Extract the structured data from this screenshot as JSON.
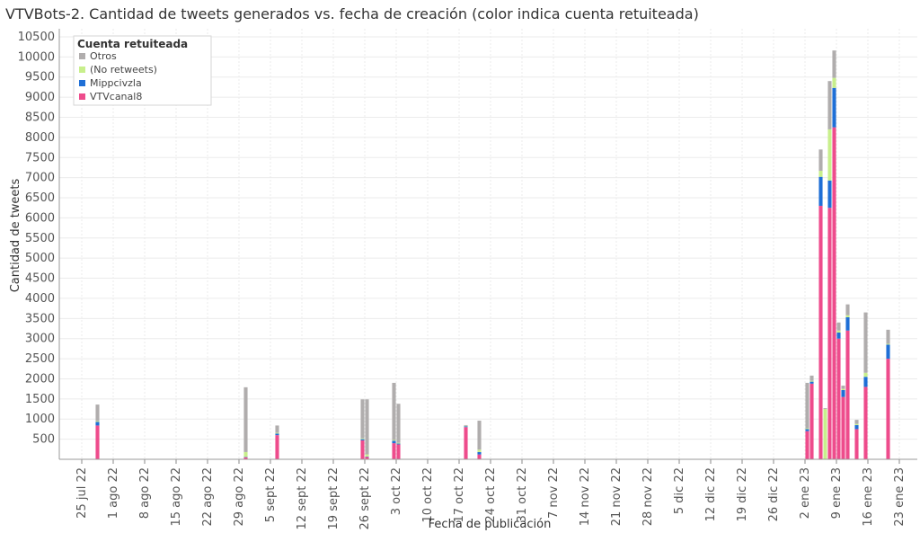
{
  "chart_data": {
    "type": "bar",
    "title": "VTVBots-2. Cantidad de tweets generados vs. fecha de creación (color indica cuenta retuiteada)",
    "xlabel": "Fecha de publicación",
    "ylabel": "Cantidad de tweets",
    "ylim": [
      0,
      10700
    ],
    "yticks": [
      500,
      1000,
      1500,
      2000,
      2500,
      3000,
      3500,
      4000,
      4500,
      5000,
      5500,
      6000,
      6500,
      7000,
      7500,
      8000,
      8500,
      9000,
      9500,
      10000,
      10500
    ],
    "x_start": "2022-07-20",
    "x_end": "2023-01-27",
    "xtick_dates": [
      "2022-07-25",
      "2022-08-01",
      "2022-08-08",
      "2022-08-15",
      "2022-08-22",
      "2022-08-29",
      "2022-09-05",
      "2022-09-12",
      "2022-09-19",
      "2022-09-26",
      "2022-10-03",
      "2022-10-10",
      "2022-10-17",
      "2022-10-24",
      "2022-10-31",
      "2022-11-07",
      "2022-11-14",
      "2022-11-21",
      "2022-11-28",
      "2022-12-05",
      "2022-12-12",
      "2022-12-19",
      "2022-12-26",
      "2023-01-02",
      "2023-01-09",
      "2023-01-16",
      "2023-01-23"
    ],
    "xtick_labels": [
      "25 jul 22",
      "1 ago 22",
      "8 ago 22",
      "15 ago 22",
      "22 ago 22",
      "29 ago 22",
      "5 sept 22",
      "12 sept 22",
      "19 sept 22",
      "26 sept 22",
      "3 oct 22",
      "10 oct 22",
      "17 oct 22",
      "24 oct 22",
      "31 oct 22",
      "7 nov 22",
      "14 nov 22",
      "21 nov 22",
      "28 nov 22",
      "5 dic 22",
      "12 dic 22",
      "19 dic 22",
      "26 dic 22",
      "2 ene 23",
      "9 ene 23",
      "16 ene 23",
      "23 ene 23"
    ],
    "grid": true,
    "legend": {
      "title": "Cuenta retuiteada",
      "placement": "top-left",
      "entries": [
        {
          "name": "Otros",
          "color": "#b0adad"
        },
        {
          "name": "(No retweets)",
          "color": "#c8ef8c"
        },
        {
          "name": "Mippcivzla",
          "color": "#1f6fd6"
        },
        {
          "name": "VTVcanal8",
          "color": "#ee4c8c"
        }
      ]
    },
    "stack_order": [
      "VTVcanal8",
      "Mippcivzla",
      "(No retweets)",
      "Otros"
    ],
    "data": [
      {
        "date": "2022-07-28",
        "VTVcanal8": 840,
        "Mippcivzla": 90,
        "(No retweets)": 20,
        "Otros": 410
      },
      {
        "date": "2022-08-30",
        "VTVcanal8": 50,
        "Mippcivzla": 10,
        "(No retweets)": 120,
        "Otros": 1610
      },
      {
        "date": "2022-09-06",
        "VTVcanal8": 600,
        "Mippcivzla": 40,
        "(No retweets)": 20,
        "Otros": 180
      },
      {
        "date": "2022-09-25",
        "VTVcanal8": 470,
        "Mippcivzla": 30,
        "(No retweets)": 20,
        "Otros": 970
      },
      {
        "date": "2022-09-26",
        "VTVcanal8": 60,
        "Mippcivzla": 10,
        "(No retweets)": 50,
        "Otros": 1370
      },
      {
        "date": "2022-10-02",
        "VTVcanal8": 400,
        "Mippcivzla": 60,
        "(No retweets)": 20,
        "Otros": 1420
      },
      {
        "date": "2022-10-03",
        "VTVcanal8": 370,
        "Mippcivzla": 20,
        "(No retweets)": 20,
        "Otros": 970
      },
      {
        "date": "2022-10-18",
        "VTVcanal8": 800,
        "Mippcivzla": 20,
        "(No retweets)": 10,
        "Otros": 20
      },
      {
        "date": "2022-10-21",
        "VTVcanal8": 120,
        "Mippcivzla": 60,
        "(No retweets)": 60,
        "Otros": 720
      },
      {
        "date": "2023-01-02",
        "VTVcanal8": 700,
        "Mippcivzla": 50,
        "(No retweets)": 20,
        "Otros": 1130
      },
      {
        "date": "2023-01-03",
        "VTVcanal8": 1880,
        "Mippcivzla": 50,
        "(No retweets)": 20,
        "Otros": 130
      },
      {
        "date": "2023-01-05",
        "VTVcanal8": 6300,
        "Mippcivzla": 720,
        "(No retweets)": 150,
        "Otros": 530
      },
      {
        "date": "2023-01-06",
        "VTVcanal8": 0,
        "Mippcivzla": 0,
        "(No retweets)": 1250,
        "Otros": 20
      },
      {
        "date": "2023-01-07",
        "VTVcanal8": 6250,
        "Mippcivzla": 680,
        "(No retweets)": 1270,
        "Otros": 1200
      },
      {
        "date": "2023-01-08",
        "VTVcanal8": 8250,
        "Mippcivzla": 980,
        "(No retweets)": 250,
        "Otros": 680
      },
      {
        "date": "2023-01-09",
        "VTVcanal8": 3000,
        "Mippcivzla": 150,
        "(No retweets)": 50,
        "Otros": 200
      },
      {
        "date": "2023-01-10",
        "VTVcanal8": 1550,
        "Mippcivzla": 170,
        "(No retweets)": 30,
        "Otros": 80
      },
      {
        "date": "2023-01-11",
        "VTVcanal8": 3200,
        "Mippcivzla": 330,
        "(No retweets)": 50,
        "Otros": 270
      },
      {
        "date": "2023-01-13",
        "VTVcanal8": 750,
        "Mippcivzla": 100,
        "(No retweets)": 30,
        "Otros": 100
      },
      {
        "date": "2023-01-15",
        "VTVcanal8": 1800,
        "Mippcivzla": 250,
        "(No retweets)": 100,
        "Otros": 1500
      },
      {
        "date": "2023-01-20",
        "VTVcanal8": 2500,
        "Mippcivzla": 350,
        "(No retweets)": 20,
        "Otros": 350
      }
    ]
  }
}
